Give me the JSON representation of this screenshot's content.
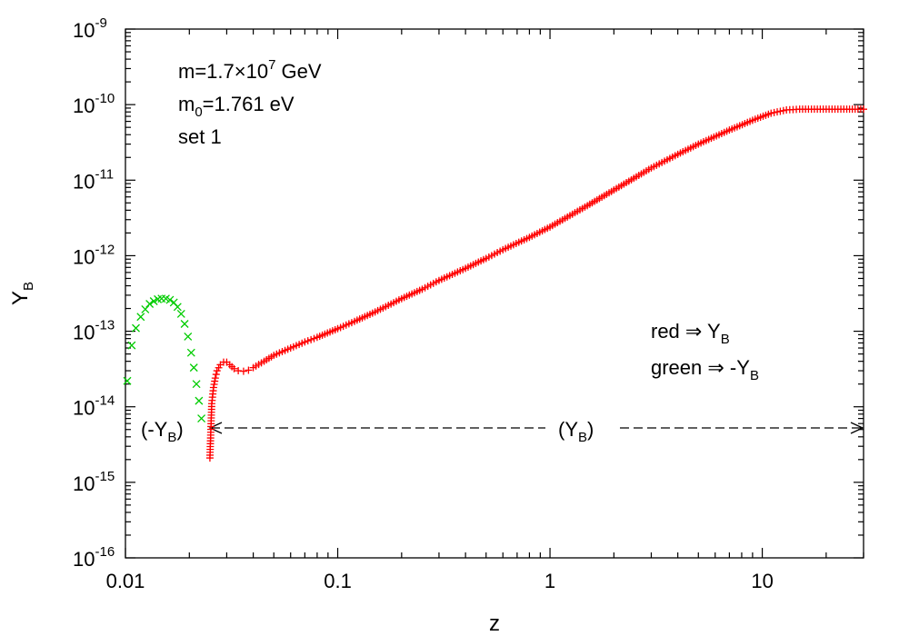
{
  "chart_data": {
    "type": "scatter",
    "title": "",
    "xlabel": "z",
    "ylabel": {
      "main": "Y",
      "sub": "B"
    },
    "xscale": "log",
    "yscale": "log",
    "xlim": [
      0.01,
      30
    ],
    "ylim": [
      1e-16,
      1e-09
    ],
    "grid": false,
    "x_ticks": [
      "0.01",
      "0.1",
      "1",
      "10"
    ],
    "x_tick_values": [
      0.01,
      0.1,
      1,
      10
    ],
    "y_ticks": [
      {
        "base": "10",
        "exp": "-16"
      },
      {
        "base": "10",
        "exp": "-15"
      },
      {
        "base": "10",
        "exp": "-14"
      },
      {
        "base": "10",
        "exp": "-13"
      },
      {
        "base": "10",
        "exp": "-12"
      },
      {
        "base": "10",
        "exp": "-11"
      },
      {
        "base": "10",
        "exp": "-10"
      },
      {
        "base": "10",
        "exp": "-9"
      }
    ],
    "params": {
      "line1": {
        "pre": "m=1.7×10",
        "exp": "7",
        "post": " GeV"
      },
      "line2": {
        "pre": "m",
        "sub": "0",
        "post": "=1.761 eV"
      },
      "line3": "set 1"
    },
    "legend_text": {
      "red": {
        "pre": "red ⇒ Y",
        "sub": "B"
      },
      "green": {
        "pre": "green ⇒ -Y",
        "sub": "B"
      }
    },
    "region_labels": {
      "left": {
        "pre": "(-Y",
        "sub": "B",
        "post": ")"
      },
      "right": {
        "pre": "(Y",
        "sub": "B",
        "post": ")"
      }
    },
    "region_boundary_z": 0.025,
    "series": [
      {
        "name": "-Y_B",
        "color": "#00cc00",
        "marker": "x",
        "x": [
          0.0102,
          0.0107,
          0.0112,
          0.0118,
          0.0124,
          0.013,
          0.0136,
          0.0142,
          0.0148,
          0.0155,
          0.0162,
          0.0169,
          0.0176,
          0.0183,
          0.019,
          0.0197,
          0.0204,
          0.021,
          0.0216,
          0.0222,
          0.0228
        ],
        "y": [
          2.2e-14,
          6.5e-14,
          1.1e-13,
          1.55e-13,
          1.95e-13,
          2.3e-13,
          2.5e-13,
          2.65e-13,
          2.7e-13,
          2.7e-13,
          2.6e-13,
          2.4e-13,
          2.1e-13,
          1.7e-13,
          1.25e-13,
          8.5e-14,
          5.2e-14,
          3.3e-14,
          2e-14,
          1.2e-14,
          7e-15
        ]
      },
      {
        "name": "Y_B",
        "color": "#ff0000",
        "marker": "+",
        "x": [
          0.025,
          0.0255,
          0.026,
          0.0265,
          0.027,
          0.028,
          0.029,
          0.03,
          0.031,
          0.0325,
          0.034,
          0.036,
          0.038,
          0.04,
          0.045,
          0.05,
          0.06,
          0.07,
          0.08,
          0.1,
          0.12,
          0.15,
          0.2,
          0.25,
          0.3,
          0.4,
          0.5,
          0.6,
          0.8,
          1,
          1.5,
          2,
          3,
          4,
          5,
          7,
          9,
          11,
          13,
          15,
          20,
          25,
          30
        ],
        "y": [
          2.1e-15,
          1.1e-14,
          1.8e-14,
          2.4e-14,
          3e-14,
          3.6e-14,
          3.9e-14,
          3.9e-14,
          3.6e-14,
          3.2e-14,
          3e-14,
          2.95e-14,
          3.05e-14,
          3.3e-14,
          4e-14,
          4.8e-14,
          6e-14,
          7.2e-14,
          8.3e-14,
          1.08e-13,
          1.35e-13,
          1.8e-13,
          2.7e-13,
          3.6e-13,
          4.7e-13,
          6.8e-13,
          9.2e-13,
          1.2e-12,
          1.75e-12,
          2.4e-12,
          4.6e-12,
          7.4e-12,
          1.45e-11,
          2.2e-11,
          3e-11,
          4.6e-11,
          6.2e-11,
          7.7e-11,
          8.5e-11,
          8.7e-11,
          8.7e-11,
          8.7e-11,
          8.7e-11
        ]
      }
    ]
  }
}
